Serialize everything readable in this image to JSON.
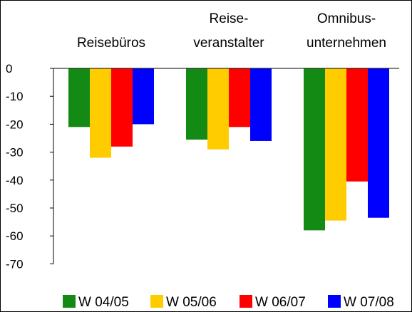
{
  "chart_data": {
    "type": "bar",
    "categories": [
      [
        "Reisebüros"
      ],
      [
        "Reise-",
        "veranstalter"
      ],
      [
        "Omnibus-",
        "unternehmen"
      ]
    ],
    "series": [
      {
        "name": "W 04/05",
        "color": "#138a13",
        "values": [
          -21,
          -25.5,
          -58
        ]
      },
      {
        "name": "W 05/06",
        "color": "#ffcc00",
        "values": [
          -32,
          -29,
          -54.5
        ]
      },
      {
        "name": "W 06/07",
        "color": "#ff0000",
        "values": [
          -28,
          -21,
          -40.5
        ]
      },
      {
        "name": "W 07/08",
        "color": "#0000ff",
        "values": [
          -20,
          -26,
          -53.5
        ]
      }
    ],
    "ylim": [
      -70,
      0
    ],
    "yticks": [
      0,
      -10,
      -20,
      -30,
      -40,
      -50,
      -60,
      -70
    ],
    "grid": false,
    "legend_position": "bottom"
  }
}
